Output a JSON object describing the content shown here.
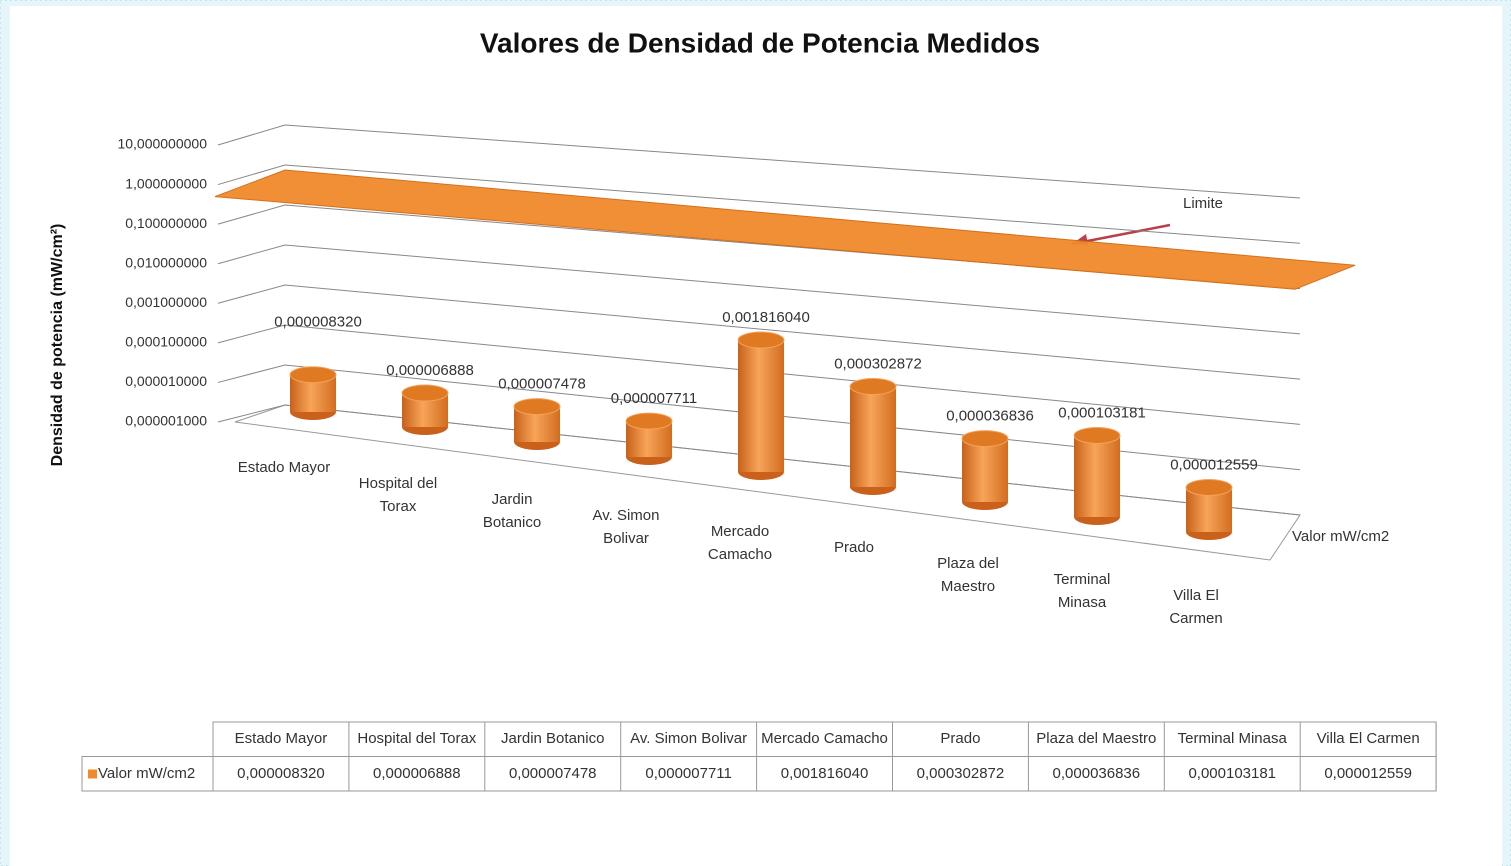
{
  "chart_data": {
    "type": "bar3d",
    "title": "Valores de Densidad de Potencia  Medidos",
    "y_axis_label": "Densidad de potencia (mW/cm²)",
    "log_scale": true,
    "ylim": [
      1e-06,
      10
    ],
    "yticks": [
      {
        "value": 10,
        "label": "10,000000000"
      },
      {
        "value": 1,
        "label": "1,000000000"
      },
      {
        "value": 0.1,
        "label": "0,100000000"
      },
      {
        "value": 0.01,
        "label": "0,010000000"
      },
      {
        "value": 0.001,
        "label": "0,001000000"
      },
      {
        "value": 0.0001,
        "label": "0,000100000"
      },
      {
        "value": 1e-05,
        "label": "0,000010000"
      },
      {
        "value": 1e-06,
        "label": "0,000001000"
      }
    ],
    "grid": true,
    "categories": [
      "Estado Mayor",
      "Hospital del Torax",
      "Jardin Botanico",
      "Av. Simon Bolivar",
      "Mercado Camacho",
      "Prado",
      "Plaza del Maestro",
      "Terminal Minasa",
      "Villa El Carmen"
    ],
    "series": [
      {
        "name": "Valor mW/cm2",
        "color": "#f08a2c",
        "values": [
          8.32e-06,
          6.888e-06,
          7.478e-06,
          7.711e-06,
          0.00181604,
          0.000302872,
          3.6836e-05,
          0.000103181,
          1.2559e-05
        ],
        "value_labels": [
          "0,000008320",
          "0,000006888",
          "0,000007478",
          "0,000007711",
          "0,001816040",
          "0,000302872",
          "0,000036836",
          "0,000103181",
          "0,000012559"
        ]
      }
    ],
    "limit": {
      "label": "Limite",
      "value": 1,
      "color": "#f08a2c"
    }
  }
}
